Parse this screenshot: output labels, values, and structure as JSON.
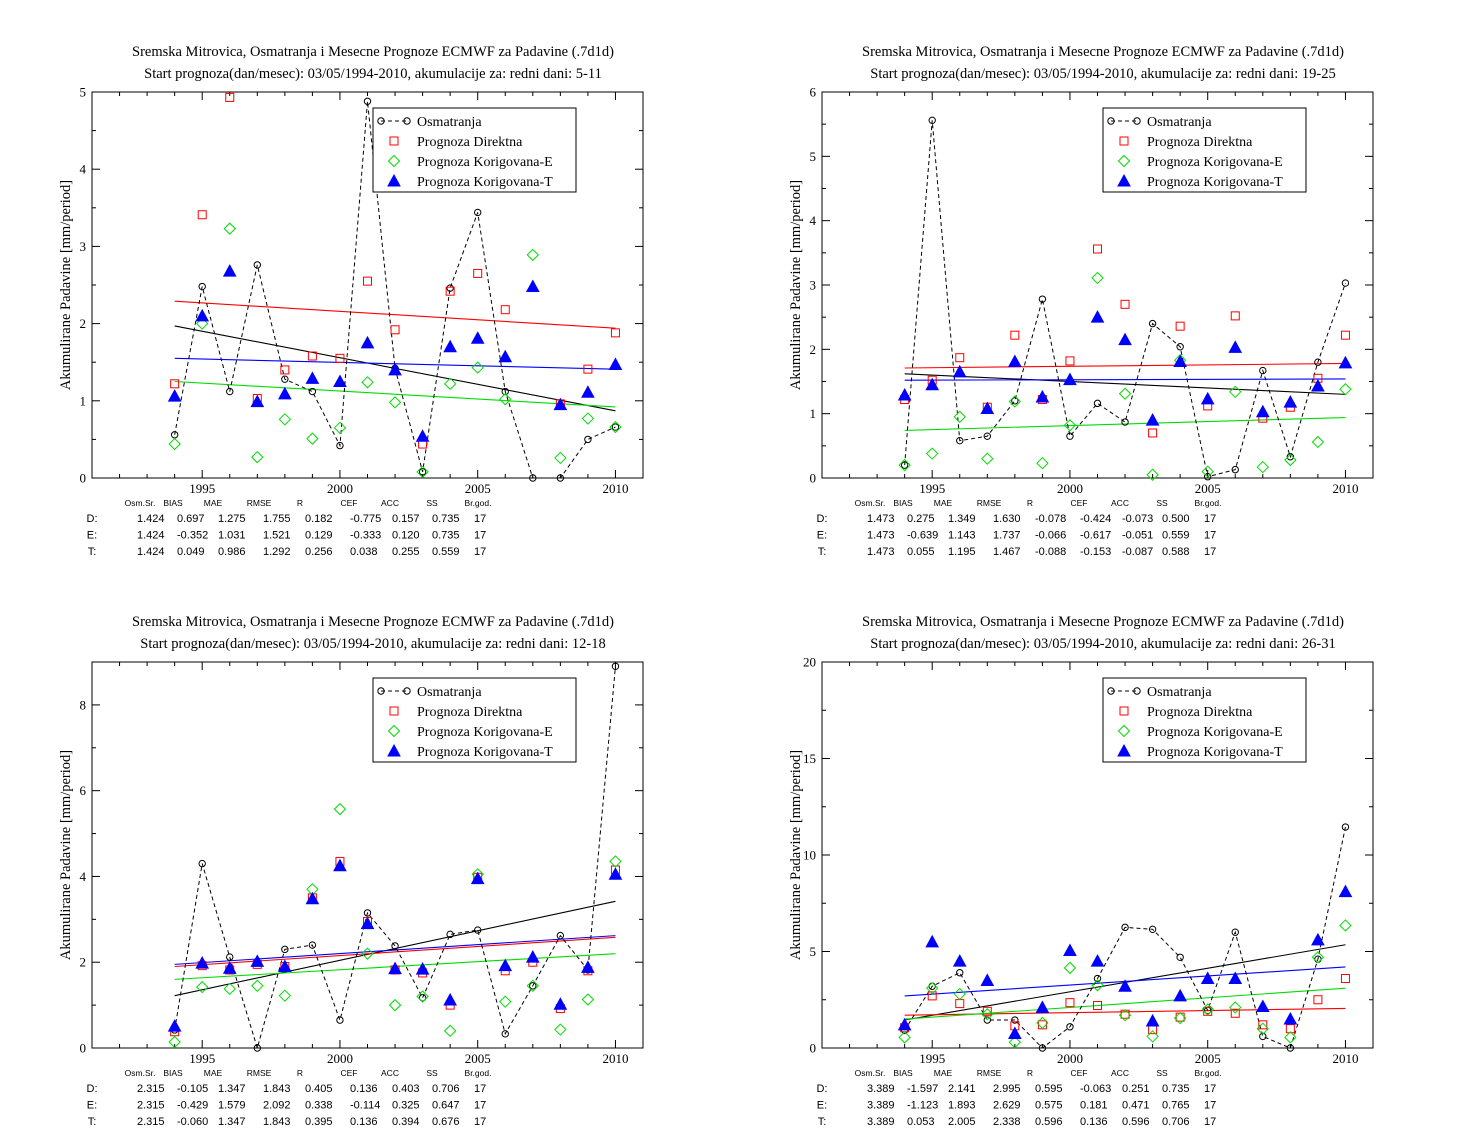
{
  "colors": {
    "obs": "#000000",
    "direct": "#ff0000",
    "corrE": "#00dd00",
    "corrT": "#0000ff"
  },
  "stat_headers": [
    "Osm.Sr.",
    "BIAS",
    "MAE",
    "RMSE",
    "R",
    "CEF",
    "ACC",
    "SS",
    "Br.god."
  ],
  "chart_data": [
    {
      "type": "scatter",
      "title": "Sremska Mitrovica, Osmatranja i Mesecne Prognoze ECMWF za Padavine (.7d1d)",
      "subtitle": "Start prognoza(dan/mesec): 03/05/1994-2010, akumulacije za: redni dani: 5-11",
      "ylabel": "Akumulirane Padavine [mm/period]",
      "xlim": [
        1991,
        2011
      ],
      "ylim": [
        0,
        5
      ],
      "xticks": [
        1995,
        2000,
        2005,
        2010
      ],
      "yticks": [
        0,
        1,
        2,
        3,
        4,
        5
      ],
      "x": [
        1994,
        1995,
        1996,
        1997,
        1998,
        1999,
        2000,
        2001,
        2002,
        2003,
        2004,
        2005,
        2006,
        2007,
        2008,
        2009,
        2010
      ],
      "series": [
        {
          "name": "Osmatranja",
          "values": [
            0.56,
            2.48,
            1.12,
            2.76,
            1.28,
            1.12,
            0.42,
            4.88,
            1.42,
            0.08,
            2.46,
            3.44,
            1.12,
            0.0,
            0.0,
            0.5,
            0.66
          ]
        },
        {
          "name": "Prognoza Direktna",
          "values": [
            1.22,
            3.41,
            4.93,
            1.03,
            1.4,
            1.58,
            1.55,
            2.55,
            1.92,
            0.44,
            2.42,
            2.65,
            2.18,
            null,
            0.96,
            1.41,
            1.88
          ]
        },
        {
          "name": "Prognoza Korigovana-E",
          "values": [
            0.44,
            2.0,
            3.23,
            0.27,
            0.76,
            0.51,
            0.65,
            1.24,
            0.98,
            0.08,
            1.22,
            1.43,
            1.02,
            2.89,
            0.26,
            0.77,
            0.66
          ]
        },
        {
          "name": "Prognoza Korigovana-T",
          "values": [
            1.06,
            2.1,
            2.68,
            0.99,
            1.09,
            1.29,
            1.25,
            1.75,
            1.4,
            0.54,
            1.7,
            1.81,
            1.57,
            2.48,
            0.95,
            1.11,
            1.47
          ]
        }
      ],
      "trends": [
        [
          1994,
          1.97,
          2010,
          0.87
        ],
        [
          1994,
          2.29,
          2010,
          1.94
        ],
        [
          1994,
          1.25,
          2010,
          0.92
        ],
        [
          1994,
          1.55,
          2010,
          1.41
        ]
      ],
      "stats": [
        {
          "label": "D:",
          "values": [
            "1.424",
            "0.697",
            "1.275",
            "1.755",
            "0.182",
            "-0.775",
            "0.157",
            "0.735",
            "17"
          ]
        },
        {
          "label": "E:",
          "values": [
            "1.424",
            "-0.352",
            "1.031",
            "1.521",
            "0.129",
            "-0.333",
            "0.120",
            "0.735",
            "17"
          ]
        },
        {
          "label": "T:",
          "values": [
            "1.424",
            "0.049",
            "0.986",
            "1.292",
            "0.256",
            "0.038",
            "0.255",
            "0.559",
            "17"
          ]
        }
      ]
    },
    {
      "type": "scatter",
      "title": "Sremska Mitrovica, Osmatranja i Mesecne Prognoze ECMWF za Padavine (.7d1d)",
      "subtitle": "Start prognoza(dan/mesec): 03/05/1994-2010, akumulacije za: redni dani: 19-25",
      "ylabel": "Akumulirane Padavine [mm/period]",
      "xlim": [
        1991,
        2011
      ],
      "ylim": [
        0,
        6
      ],
      "xticks": [
        1995,
        2000,
        2005,
        2010
      ],
      "yticks": [
        0,
        1,
        2,
        3,
        4,
        5,
        6
      ],
      "x": [
        1994,
        1995,
        1996,
        1997,
        1998,
        1999,
        2000,
        2001,
        2002,
        2003,
        2004,
        2005,
        2006,
        2007,
        2008,
        2009,
        2010
      ],
      "series": [
        {
          "name": "Osmatranja",
          "values": [
            0.2,
            5.56,
            0.58,
            0.65,
            1.2,
            2.78,
            0.65,
            1.16,
            0.87,
            2.4,
            2.04,
            0.02,
            0.13,
            1.67,
            0.33,
            1.8,
            3.03
          ]
        },
        {
          "name": "Prognoza Direktna",
          "values": [
            1.22,
            1.52,
            1.87,
            1.1,
            2.22,
            1.22,
            1.82,
            3.56,
            2.7,
            0.7,
            2.36,
            1.12,
            2.52,
            0.93,
            1.1,
            1.55,
            2.22
          ]
        },
        {
          "name": "Prognoza Korigovana-E",
          "values": [
            0.2,
            0.38,
            0.95,
            0.3,
            1.19,
            0.23,
            0.82,
            3.11,
            1.31,
            0.05,
            1.83,
            0.1,
            1.34,
            0.17,
            0.28,
            0.56,
            1.38
          ]
        },
        {
          "name": "Prognoza Korigovana-T",
          "values": [
            1.29,
            1.45,
            1.65,
            1.08,
            1.81,
            1.26,
            1.53,
            2.5,
            2.15,
            0.9,
            1.81,
            1.23,
            2.03,
            1.03,
            1.18,
            1.43,
            1.79
          ]
        }
      ],
      "trends": [
        [
          1994,
          1.62,
          2010,
          1.3
        ],
        [
          1994,
          1.71,
          2010,
          1.78
        ],
        [
          1994,
          0.74,
          2010,
          0.94
        ],
        [
          1994,
          1.52,
          2010,
          1.54
        ]
      ],
      "stats": [
        {
          "label": "D:",
          "values": [
            "1.473",
            "0.275",
            "1.349",
            "1.630",
            "-0.078",
            "-0.424",
            "-0.073",
            "0.500",
            "17"
          ]
        },
        {
          "label": "E:",
          "values": [
            "1.473",
            "-0.639",
            "1.143",
            "1.737",
            "-0.066",
            "-0.617",
            "-0.051",
            "0.559",
            "17"
          ]
        },
        {
          "label": "T:",
          "values": [
            "1.473",
            "0.055",
            "1.195",
            "1.467",
            "-0.088",
            "-0.153",
            "-0.087",
            "0.588",
            "17"
          ]
        }
      ]
    },
    {
      "type": "scatter",
      "title": "Sremska Mitrovica, Osmatranja i Mesecne Prognoze ECMWF za Padavine (.7d1d)",
      "subtitle": "Start prognoza(dan/mesec): 03/05/1994-2010, akumulacije za: redni dani: 12-18",
      "ylabel": "Akumulirane Padavine [mm/period]",
      "xlim": [
        1991,
        2011
      ],
      "ylim": [
        0,
        9
      ],
      "xticks": [
        1995,
        2000,
        2005,
        2010
      ],
      "yticks": [
        0,
        2,
        4,
        6,
        8
      ],
      "x": [
        1994,
        1995,
        1996,
        1997,
        1998,
        1999,
        2000,
        2001,
        2002,
        2003,
        2004,
        2005,
        2006,
        2007,
        2008,
        2009,
        2010
      ],
      "series": [
        {
          "name": "Osmatranja",
          "values": [
            0.42,
            4.3,
            2.12,
            0.0,
            2.3,
            2.4,
            0.65,
            3.15,
            2.38,
            1.17,
            2.65,
            2.75,
            0.33,
            1.45,
            2.62,
            1.82,
            8.9
          ]
        },
        {
          "name": "Prognoza Direktna",
          "values": [
            0.38,
            1.92,
            1.82,
            1.95,
            1.9,
            3.5,
            4.35,
            2.95,
            1.82,
            1.75,
            1.0,
            3.98,
            1.8,
            2.0,
            0.92,
            1.8,
            4.15
          ]
        },
        {
          "name": "Prognoza Korigovana-E",
          "values": [
            0.14,
            1.42,
            1.38,
            1.45,
            1.22,
            3.7,
            5.57,
            2.2,
            1.0,
            1.2,
            0.4,
            4.05,
            1.08,
            1.45,
            0.43,
            1.13,
            4.35
          ]
        },
        {
          "name": "Prognoza Korigovana-T",
          "values": [
            0.51,
            1.98,
            1.86,
            2.02,
            1.9,
            3.48,
            4.25,
            2.9,
            1.85,
            1.84,
            1.12,
            3.95,
            1.92,
            2.12,
            1.02,
            1.88,
            4.05
          ]
        }
      ],
      "trends": [
        [
          1994,
          1.22,
          2010,
          3.42
        ],
        [
          1994,
          1.9,
          2010,
          2.58
        ],
        [
          1994,
          1.6,
          2010,
          2.2
        ],
        [
          1994,
          1.95,
          2010,
          2.62
        ]
      ],
      "stats": [
        {
          "label": "D:",
          "values": [
            "2.315",
            "-0.105",
            "1.347",
            "1.843",
            "0.405",
            "0.136",
            "0.403",
            "0.706",
            "17"
          ]
        },
        {
          "label": "E:",
          "values": [
            "2.315",
            "-0.429",
            "1.579",
            "2.092",
            "0.338",
            "-0.114",
            "0.325",
            "0.647",
            "17"
          ]
        },
        {
          "label": "T:",
          "values": [
            "2.315",
            "-0.060",
            "1.347",
            "1.843",
            "0.395",
            "0.136",
            "0.394",
            "0.676",
            "17"
          ]
        }
      ]
    },
    {
      "type": "scatter",
      "title": "Sremska Mitrovica, Osmatranja i Mesecne Prognoze ECMWF za Padavine (.7d1d)",
      "subtitle": "Start prognoza(dan/mesec): 03/05/1994-2010, akumulacije za: redni dani: 26-31",
      "ylabel": "Akumulirane Padavine [mm/period]",
      "xlim": [
        1991,
        2011
      ],
      "ylim": [
        0,
        20
      ],
      "xticks": [
        1995,
        2000,
        2005,
        2010
      ],
      "yticks": [
        0,
        5,
        10,
        15,
        20
      ],
      "x": [
        1994,
        1995,
        1996,
        1997,
        1998,
        1999,
        2000,
        2001,
        2002,
        2003,
        2004,
        2005,
        2006,
        2007,
        2008,
        2009,
        2010
      ],
      "series": [
        {
          "name": "Osmatranja",
          "values": [
            0.92,
            3.2,
            3.9,
            1.45,
            1.45,
            0.0,
            1.1,
            3.6,
            6.25,
            6.15,
            4.7,
            1.95,
            6.0,
            0.6,
            0.0,
            4.6,
            11.45
          ]
        },
        {
          "name": "Prognoza Direktna",
          "values": [
            1.05,
            2.7,
            2.3,
            1.9,
            1.15,
            1.2,
            2.35,
            2.2,
            1.75,
            0.95,
            1.6,
            1.9,
            1.8,
            1.2,
            1.0,
            2.5,
            3.6
          ]
        },
        {
          "name": "Prognoza Korigovana-E",
          "values": [
            0.55,
            3.1,
            2.8,
            1.75,
            0.3,
            1.3,
            4.15,
            3.25,
            1.7,
            0.6,
            1.55,
            2.0,
            2.1,
            1.0,
            0.55,
            4.7,
            6.35
          ]
        },
        {
          "name": "Prognoza Korigovana-T",
          "values": [
            1.2,
            5.5,
            4.5,
            3.5,
            0.75,
            2.1,
            5.05,
            4.5,
            3.2,
            1.4,
            2.7,
            3.6,
            3.6,
            2.15,
            1.5,
            5.6,
            8.1
          ]
        }
      ],
      "trends": [
        [
          1994,
          1.45,
          2010,
          5.35
        ],
        [
          1994,
          1.7,
          2010,
          2.05
        ],
        [
          1994,
          1.5,
          2010,
          3.1
        ],
        [
          1994,
          2.7,
          2010,
          4.2
        ]
      ],
      "stats": [
        {
          "label": "D:",
          "values": [
            "3.389",
            "-1.597",
            "2.141",
            "2.995",
            "0.595",
            "-0.063",
            "0.251",
            "0.735",
            "17"
          ]
        },
        {
          "label": "E:",
          "values": [
            "3.389",
            "-1.123",
            "1.893",
            "2.629",
            "0.575",
            "0.181",
            "0.471",
            "0.765",
            "17"
          ]
        },
        {
          "label": "T:",
          "values": [
            "3.389",
            "0.053",
            "2.005",
            "2.338",
            "0.596",
            "0.136",
            "0.596",
            "0.706",
            "17"
          ]
        }
      ]
    }
  ]
}
